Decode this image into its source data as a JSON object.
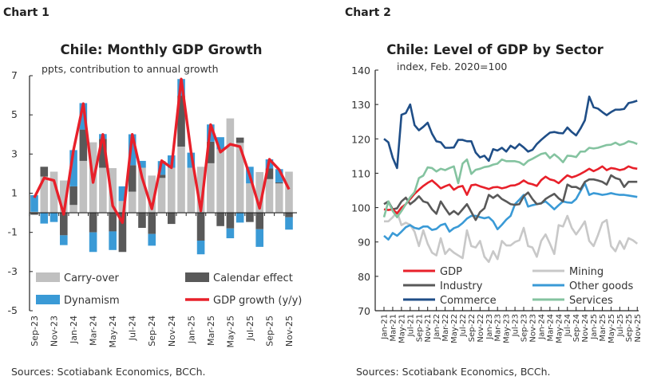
{
  "chart_data": [
    {
      "type": "bar",
      "label": "Chart 1",
      "title": "Chile: Monthly GDP Growth",
      "subtitle": "ppts, contribution to annual growth",
      "source": "Sources: Scotiabank Economics, BCCh.",
      "ylim": [
        -5,
        7
      ],
      "yticks": [
        7,
        5,
        3,
        1,
        -1,
        -3,
        -5
      ],
      "categories": [
        "Sep-23",
        "Oct-23",
        "Nov-23",
        "Dec-23",
        "Jan-24",
        "Feb-24",
        "Mar-24",
        "Apr-24",
        "May-24",
        "Jun-24",
        "Jul-24",
        "Aug-24",
        "Sep-24",
        "Oct-24",
        "Nov-24",
        "Dec-24",
        "Jan-25",
        "Feb-25",
        "Mar-25",
        "Apr-25",
        "May-25",
        "Jun-25",
        "Jul-25",
        "Aug-25",
        "Sep-25",
        "Oct-25",
        "Nov-25"
      ],
      "xticklabels": [
        "Sep-23",
        "Nov-23",
        "Jan-24",
        "Mar-24",
        "May-24",
        "Jul-24",
        "Sep-24",
        "Nov-24",
        "Jan-25",
        "Mar-25",
        "May-25",
        "Jul-25",
        "Sep-25",
        "Nov-25"
      ],
      "stacked": true,
      "series": [
        {
          "name": "Carry-over",
          "type": "bar",
          "color": "#c0c0c0",
          "values": [
            0.05,
            1.85,
            2.1,
            1.65,
            0.4,
            2.65,
            3.6,
            2.3,
            2.28,
            0.6,
            1.08,
            2.3,
            1.9,
            1.78,
            2.3,
            3.38,
            2.3,
            2.35,
            2.53,
            3.24,
            4.82,
            3.57,
            1.5,
            2.08,
            1.72,
            1.5,
            2.1
          ]
        },
        {
          "name": "Calendar effect",
          "type": "bar",
          "color": "#595959",
          "values": [
            -0.1,
            0.5,
            0,
            -1.15,
            0.95,
            1.6,
            -1.0,
            1.47,
            -0.95,
            -2.0,
            1.35,
            -0.77,
            -1.08,
            0.16,
            -0.57,
            2.6,
            0,
            -1.42,
            1.1,
            -0.68,
            -0.8,
            0.27,
            -0.47,
            -0.84,
            0.54,
            0.05,
            -0.23
          ]
        },
        {
          "name": "Dynamism",
          "type": "bar",
          "color": "#3a9ad6",
          "values": [
            0.85,
            -0.55,
            -0.47,
            -0.5,
            1.85,
            1.35,
            -1.0,
            0.25,
            -0.95,
            0.75,
            1.58,
            0.35,
            -0.6,
            0.7,
            0.63,
            0.85,
            0.77,
            -0.7,
            0.88,
            0.62,
            -0.5,
            -0.5,
            0.85,
            -0.9,
            0.47,
            0.68,
            -0.63
          ]
        },
        {
          "name": "GDP growth (y/y)",
          "type": "line",
          "color": "#e8202a",
          "values": [
            0.77,
            1.78,
            1.65,
            -0.08,
            3.2,
            5.57,
            1.55,
            4.0,
            0.36,
            -0.5,
            4.0,
            1.8,
            0.2,
            2.66,
            2.3,
            6.83,
            3.1,
            0.1,
            4.5,
            3.1,
            3.5,
            3.38,
            1.9,
            0.23,
            2.73,
            2.2,
            1.2
          ]
        }
      ],
      "legend_position": "bottom-inside"
    },
    {
      "type": "line",
      "label": "Chart 2",
      "title": "Chile: Level of GDP by Sector",
      "subtitle": "index, Feb. 2020=100",
      "source": "Sources: Scotiabank Economics, BCCh.",
      "ylim": [
        70,
        140
      ],
      "yticks": [
        140,
        130,
        120,
        110,
        100,
        90,
        80,
        70
      ],
      "x_start": "Jan-21",
      "x_end": "Nov-25",
      "xticklabels": [
        "Jan-21",
        "Mar-21",
        "May-21",
        "Jul-21",
        "Sep-21",
        "Nov-21",
        "Jan-22",
        "Mar-22",
        "May-22",
        "Jul-22",
        "Sep-22",
        "Nov-22",
        "Jan-23",
        "Mar-23",
        "May-23",
        "Jul-23",
        "Sep-23",
        "Nov-23",
        "Jan-24",
        "Mar-24",
        "May-24",
        "Jul-24",
        "Sep-24",
        "Nov-24",
        "Jan-25",
        "Mar-25",
        "May-25",
        "Jul-25",
        "Sep-25",
        "Nov-25"
      ],
      "series": [
        {
          "name": "GDP",
          "color": "#e8202a",
          "values": [
            99.5,
            99.3,
            99.5,
            98.3,
            100,
            101,
            102.5,
            104,
            105.2,
            106.3,
            107.2,
            107.9,
            106.8,
            105.6,
            106.2,
            106.7,
            105.2,
            106,
            106.3,
            103.7,
            106.5,
            106.7,
            106.2,
            105.8,
            105.4,
            105.9,
            106,
            105.6,
            105.9,
            106.4,
            106.5,
            107,
            107.9,
            107.1,
            106.8,
            106.3,
            108,
            109,
            108.2,
            107.9,
            107.1,
            108.3,
            109.4,
            108.8,
            109.2,
            109.8,
            110.5,
            111.3,
            110.6,
            111.2,
            112,
            110.9,
            111.5,
            111.3,
            110.9,
            111.2,
            112,
            111.5,
            111.3
          ]
        },
        {
          "name": "Mining",
          "color": "#c8c8c8",
          "values": [
            96,
            96,
            97.2,
            98.7,
            94.9,
            95.6,
            95,
            93,
            88.8,
            93.4,
            89.5,
            86.9,
            86.1,
            91.1,
            86.5,
            88,
            86.9,
            86.1,
            85.3,
            93.4,
            88.8,
            88.4,
            90.3,
            85.7,
            84.2,
            87.3,
            85,
            90.3,
            89,
            89,
            90,
            90.5,
            94.1,
            88.8,
            88.4,
            85.7,
            90.3,
            92.2,
            89.5,
            86.5,
            94.9,
            94.5,
            97.6,
            94.1,
            92.2,
            94,
            96,
            90.3,
            88.8,
            92,
            95.6,
            96.4,
            88.8,
            87.3,
            90.3,
            88,
            91.1,
            90.5,
            89.5
          ]
        },
        {
          "name": "Industry",
          "color": "#595959",
          "values": [
            101,
            101.8,
            99.5,
            99.8,
            101.8,
            102.9,
            101,
            102,
            103.3,
            101.8,
            101.4,
            99.5,
            98.2,
            101.8,
            99.8,
            98,
            99,
            98,
            99.5,
            101,
            98.7,
            96.4,
            98.7,
            99.8,
            103.7,
            102.8,
            103.7,
            102.5,
            101.8,
            101,
            100.8,
            101,
            103.3,
            104.4,
            102.5,
            101,
            101.2,
            102.5,
            103.3,
            104,
            102.7,
            101.8,
            106.7,
            106,
            106,
            105.3,
            107.5,
            108.2,
            108.2,
            107.9,
            107.5,
            106.7,
            109.4,
            108.6,
            108.2,
            106,
            107.5,
            107.5,
            107.5
          ]
        },
        {
          "name": "Other goods",
          "color": "#3a9ad6",
          "values": [
            91.8,
            90.7,
            92.6,
            91.8,
            93,
            94.3,
            94.9,
            94.1,
            93.8,
            94.5,
            94.5,
            93.5,
            93.8,
            94.9,
            95.3,
            93,
            94,
            94.5,
            95.5,
            96.8,
            97.6,
            97.6,
            97.2,
            96.9,
            97.2,
            96,
            93.7,
            95,
            96.5,
            97.6,
            101,
            102.3,
            103.7,
            100.3,
            100.7,
            101,
            101.3,
            101.8,
            100.7,
            99.5,
            100.7,
            101.8,
            101.5,
            101.4,
            102.5,
            104.8,
            107.1,
            103.7,
            104.2,
            104,
            103.7,
            103.9,
            104.2,
            103.9,
            103.7,
            103.7,
            103.5,
            103.3,
            103.1
          ]
        },
        {
          "name": "Commerce",
          "color": "#1f4e87",
          "values": [
            120,
            119,
            114.5,
            111.5,
            127,
            127.5,
            130,
            124,
            122.5,
            123.5,
            124.7,
            121.5,
            119.3,
            119,
            117.4,
            117.4,
            117.5,
            119.7,
            119.7,
            119.3,
            119.3,
            116,
            114.6,
            115.1,
            113.6,
            117,
            116.6,
            117.4,
            116.3,
            118,
            117.2,
            118.5,
            117.5,
            116.3,
            116.8,
            118.5,
            119.7,
            120.8,
            121.8,
            122,
            121.7,
            121.6,
            123.3,
            122,
            121,
            123,
            125.4,
            132.3,
            129.2,
            128.8,
            127.8,
            126.9,
            127.8,
            128.5,
            128.5,
            128.7,
            130.4,
            130.7,
            131.1
          ]
        },
        {
          "name": "Services",
          "color": "#84c3a0",
          "values": [
            97.2,
            101.8,
            99,
            97.2,
            99,
            101,
            103,
            104.5,
            108.6,
            109.3,
            111.7,
            111.5,
            110.5,
            111.3,
            110.9,
            111.5,
            112,
            107.1,
            112.8,
            114,
            109.8,
            111,
            111.3,
            111.8,
            112,
            112.5,
            112.8,
            114,
            113.5,
            113.5,
            113.5,
            113.2,
            112.4,
            113.6,
            114.2,
            114.9,
            115.6,
            115.9,
            114.4,
            115.5,
            114.5,
            113.2,
            115.1,
            115,
            114.7,
            116.3,
            116.3,
            117.4,
            117.2,
            117.4,
            117.8,
            118.2,
            118.3,
            118.9,
            118.2,
            118.6,
            119.3,
            119,
            118.5
          ]
        }
      ],
      "legend_position": "bottom-inside"
    }
  ]
}
